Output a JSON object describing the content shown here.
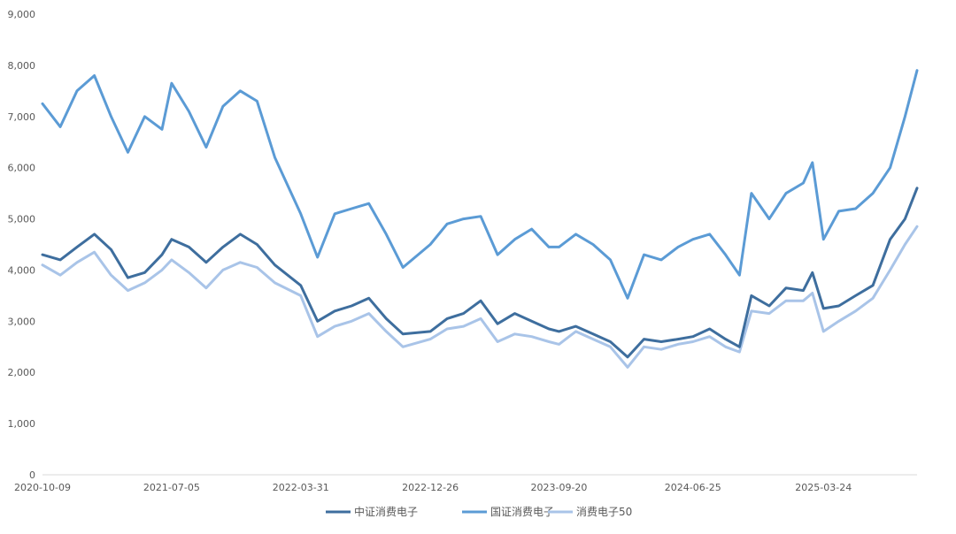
{
  "chart_data": {
    "type": "line",
    "title": "",
    "xlabel": "",
    "ylabel": "",
    "ylim": [
      0,
      9000
    ],
    "y_ticks": [
      "0",
      "1,000",
      "2,000",
      "3,000",
      "4,000",
      "5,000",
      "6,000",
      "7,000",
      "8,000",
      "9,000"
    ],
    "x_ticks": [
      "2020-10-09",
      "2021-07-05",
      "2022-03-31",
      "2022-12-26",
      "2023-09-20",
      "2024-06-25",
      "2025-03-24"
    ],
    "grid": false,
    "legend_position": "bottom",
    "x": [
      "2020-10-09",
      "2020-11-15",
      "2020-12-20",
      "2021-01-25",
      "2021-03-01",
      "2021-04-05",
      "2021-05-10",
      "2021-06-15",
      "2021-07-05",
      "2021-08-10",
      "2021-09-15",
      "2021-10-20",
      "2021-11-25",
      "2021-12-30",
      "2022-02-05",
      "2022-03-31",
      "2022-05-05",
      "2022-06-10",
      "2022-07-15",
      "2022-08-20",
      "2022-09-25",
      "2022-10-30",
      "2022-12-26",
      "2023-01-30",
      "2023-03-05",
      "2023-04-10",
      "2023-05-15",
      "2023-06-20",
      "2023-07-25",
      "2023-08-30",
      "2023-09-20",
      "2023-10-25",
      "2023-11-30",
      "2024-01-05",
      "2024-02-10",
      "2024-03-15",
      "2024-04-20",
      "2024-05-25",
      "2024-06-25",
      "2024-07-30",
      "2024-09-01",
      "2024-09-30",
      "2024-10-25",
      "2024-12-01",
      "2025-01-05",
      "2025-02-10",
      "2025-03-01",
      "2025-03-24",
      "2025-04-25",
      "2025-05-30",
      "2025-07-05",
      "2025-08-10",
      "2025-09-10",
      "2025-10-05"
    ],
    "series": [
      {
        "name": "中证消费电子",
        "color": "#3e6e9e",
        "values": [
          4300,
          4200,
          4450,
          4700,
          4400,
          3850,
          3950,
          4300,
          4600,
          4450,
          4150,
          4450,
          4700,
          4500,
          4100,
          3700,
          3000,
          3200,
          3300,
          3450,
          3050,
          2750,
          2800,
          3050,
          3150,
          3400,
          2950,
          3150,
          3000,
          2850,
          2800,
          2900,
          2750,
          2600,
          2300,
          2650,
          2600,
          2650,
          2700,
          2850,
          2650,
          2500,
          3500,
          3300,
          3650,
          3600,
          3950,
          3250,
          3300,
          3500,
          3700,
          4600,
          5000,
          5600
        ]
      },
      {
        "name": "国证消费电子",
        "color": "#5b9bd5",
        "values": [
          7250,
          6800,
          7500,
          7800,
          7000,
          6300,
          7000,
          6750,
          7650,
          7100,
          6400,
          7200,
          7500,
          7300,
          6200,
          5100,
          4250,
          5100,
          5200,
          5300,
          4700,
          4050,
          4500,
          4900,
          5000,
          5050,
          4300,
          4600,
          4800,
          4450,
          4450,
          4700,
          4500,
          4200,
          3450,
          4300,
          4200,
          4450,
          4600,
          4700,
          4300,
          3900,
          5500,
          5000,
          5500,
          5700,
          6100,
          4600,
          5150,
          5200,
          5500,
          6000,
          7000,
          7900
        ]
      },
      {
        "name": "消费电子50",
        "color": "#a9c4e8",
        "values": [
          4100,
          3900,
          4150,
          4350,
          3900,
          3600,
          3750,
          4000,
          4200,
          3950,
          3650,
          4000,
          4150,
          4050,
          3750,
          3500,
          2700,
          2900,
          3000,
          3150,
          2800,
          2500,
          2650,
          2850,
          2900,
          3050,
          2600,
          2750,
          2700,
          2600,
          2550,
          2800,
          2650,
          2500,
          2100,
          2500,
          2450,
          2550,
          2600,
          2700,
          2500,
          2400,
          3200,
          3150,
          3400,
          3400,
          3550,
          2800,
          3000,
          3200,
          3450,
          4000,
          4500,
          4850
        ]
      }
    ]
  }
}
